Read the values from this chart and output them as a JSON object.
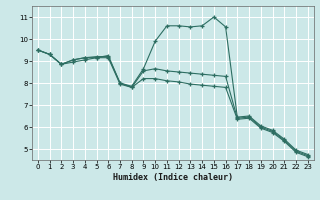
{
  "xlabel": "Humidex (Indice chaleur)",
  "bg_color": "#cce8e8",
  "grid_color": "#ffffff",
  "line_color": "#2d6e62",
  "xlim": [
    -0.5,
    23.5
  ],
  "ylim": [
    4.5,
    11.5
  ],
  "xticks": [
    0,
    1,
    2,
    3,
    4,
    5,
    6,
    7,
    8,
    9,
    10,
    11,
    12,
    13,
    14,
    15,
    16,
    17,
    18,
    19,
    20,
    21,
    22,
    23
  ],
  "yticks": [
    5,
    6,
    7,
    8,
    9,
    10,
    11
  ],
  "line1_x": [
    0,
    1,
    2,
    3,
    4,
    5,
    6,
    7,
    8,
    9,
    10,
    11,
    12,
    13,
    14,
    15,
    16,
    17,
    18,
    19,
    20,
    21,
    22,
    23
  ],
  "line1_y": [
    9.5,
    9.3,
    8.85,
    9.05,
    9.15,
    9.15,
    9.25,
    8.0,
    7.85,
    8.65,
    9.9,
    10.6,
    10.6,
    10.55,
    10.6,
    11.0,
    10.55,
    6.45,
    6.5,
    6.05,
    5.85,
    5.45,
    4.95,
    4.75
  ],
  "line2_x": [
    0,
    1,
    2,
    3,
    4,
    5,
    6,
    7,
    8,
    9,
    10,
    11,
    12,
    13,
    14,
    15,
    16,
    17,
    18,
    19,
    20,
    21,
    22,
    23
  ],
  "line2_y": [
    9.5,
    9.3,
    8.85,
    9.05,
    9.15,
    9.2,
    9.2,
    8.0,
    7.8,
    8.55,
    8.65,
    8.55,
    8.5,
    8.45,
    8.4,
    8.35,
    8.3,
    6.4,
    6.45,
    6.0,
    5.8,
    5.4,
    4.9,
    4.7
  ],
  "line3_x": [
    0,
    1,
    2,
    3,
    4,
    5,
    6,
    7,
    8,
    9,
    10,
    11,
    12,
    13,
    14,
    15,
    16,
    17,
    18,
    19,
    20,
    21,
    22,
    23
  ],
  "line3_y": [
    9.5,
    9.3,
    8.85,
    8.95,
    9.05,
    9.15,
    9.15,
    7.95,
    7.8,
    8.2,
    8.2,
    8.1,
    8.05,
    7.95,
    7.9,
    7.85,
    7.8,
    6.35,
    6.4,
    5.95,
    5.75,
    5.35,
    4.85,
    4.65
  ]
}
